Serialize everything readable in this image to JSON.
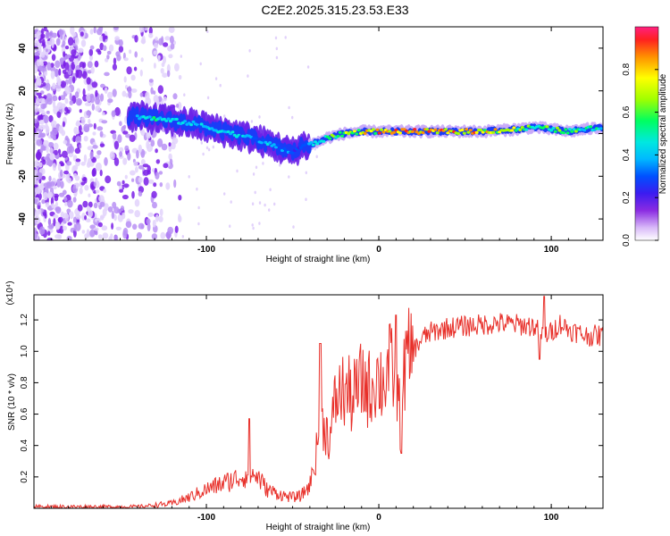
{
  "title": "C2E2.2025.315.23.53.E33",
  "colors": {
    "snr_line": "#e8302a",
    "colormap": [
      "#ffffff",
      "#d8b8f8",
      "#8a2be2",
      "#3b1cf0",
      "#0050ff",
      "#00b8ff",
      "#00e8e0",
      "#00ff60",
      "#a0ff00",
      "#ffff00",
      "#ff9000",
      "#ff2020"
    ]
  },
  "chart_data": [
    {
      "type": "heatmap",
      "title": "C2E2.2025.315.23.53.E33",
      "xlabel": "Height of straight line (km)",
      "ylabel": "Frequency (Hz)",
      "xlim": [
        -200,
        130
      ],
      "ylim": [
        -50,
        50
      ],
      "xticks": [
        -100,
        0,
        100
      ],
      "yticks": [
        -40,
        -20,
        0,
        20,
        40
      ],
      "ridge": {
        "x": [
          -140,
          -130,
          -120,
          -110,
          -100,
          -90,
          -80,
          -70,
          -60,
          -50,
          -45,
          -40,
          -35,
          -30,
          -20,
          -10,
          0,
          20,
          40,
          60,
          80,
          90,
          100,
          110,
          120,
          130
        ],
        "center_hz": [
          8,
          7,
          6,
          5,
          3,
          1,
          -1,
          -3,
          -6,
          -9,
          -6,
          -5,
          -4,
          -2,
          0,
          1,
          1,
          1,
          1,
          1,
          2,
          3,
          2,
          1,
          2,
          3
        ],
        "amplitude": [
          0.45,
          0.55,
          0.55,
          0.5,
          0.45,
          0.5,
          0.5,
          0.45,
          0.45,
          0.4,
          0.3,
          0.45,
          0.55,
          0.6,
          0.7,
          0.8,
          0.85,
          0.9,
          0.9,
          0.85,
          0.7,
          0.6,
          0.65,
          0.7,
          0.6,
          0.55
        ]
      },
      "colorbar": {
        "label": "Normalized spectral amplitude",
        "range": [
          0,
          1
        ],
        "ticks": [
          "0.0",
          "0.2",
          "0.4",
          "0.6",
          "0.8"
        ],
        "tick_values": [
          0,
          0.2,
          0.4,
          0.6,
          0.8
        ]
      }
    },
    {
      "type": "line",
      "xlabel": "Height of straight line (km)",
      "ylabel": "SNR (10 * v/v)",
      "multiplier": "(x10⁴)",
      "xlim": [
        -200,
        130
      ],
      "ylim": [
        0,
        1.36
      ],
      "xticks": [
        -100,
        0,
        100
      ],
      "yticks": [
        "0.2",
        "0.4",
        "0.6",
        "0.8",
        "1.0",
        "1.2"
      ],
      "ytick_values": [
        0.2,
        0.4,
        0.6,
        0.8,
        1.0,
        1.2
      ],
      "series": [
        {
          "name": "SNR",
          "x": [
            -200,
            -160,
            -140,
            -130,
            -120,
            -110,
            -100,
            -90,
            -80,
            -75,
            -70,
            -65,
            -60,
            -55,
            -50,
            -45,
            -40,
            -37,
            -35,
            -32,
            -30,
            -28,
            -25,
            -20,
            -15,
            -10,
            -7,
            -5,
            -2,
            0,
            3,
            5,
            10,
            13,
            15,
            20,
            25,
            30,
            40,
            50,
            60,
            70,
            80,
            90,
            95,
            100,
            105,
            110,
            115,
            120,
            130
          ],
          "y": [
            0.01,
            0.01,
            0.01,
            0.02,
            0.03,
            0.07,
            0.12,
            0.16,
            0.2,
            0.22,
            0.2,
            0.12,
            0.1,
            0.08,
            0.07,
            0.08,
            0.15,
            0.3,
            0.45,
            0.55,
            0.48,
            0.45,
            0.7,
            0.75,
            0.7,
            0.8,
            0.78,
            0.75,
            0.85,
            0.82,
            0.8,
            0.9,
            0.85,
            0.5,
            0.9,
            1.0,
            1.08,
            1.12,
            1.15,
            1.16,
            1.17,
            1.18,
            1.17,
            1.16,
            1.1,
            1.12,
            1.18,
            1.14,
            1.12,
            1.1,
            1.1
          ]
        }
      ],
      "spikes": [
        {
          "x": -75,
          "y": 0.57
        },
        {
          "x": -34,
          "y": 1.05
        },
        {
          "x": 10,
          "y": 1.23
        },
        {
          "x": 13,
          "y": 0.35
        },
        {
          "x": 96,
          "y": 1.35
        },
        {
          "x": 93,
          "y": 0.95
        }
      ]
    }
  ]
}
